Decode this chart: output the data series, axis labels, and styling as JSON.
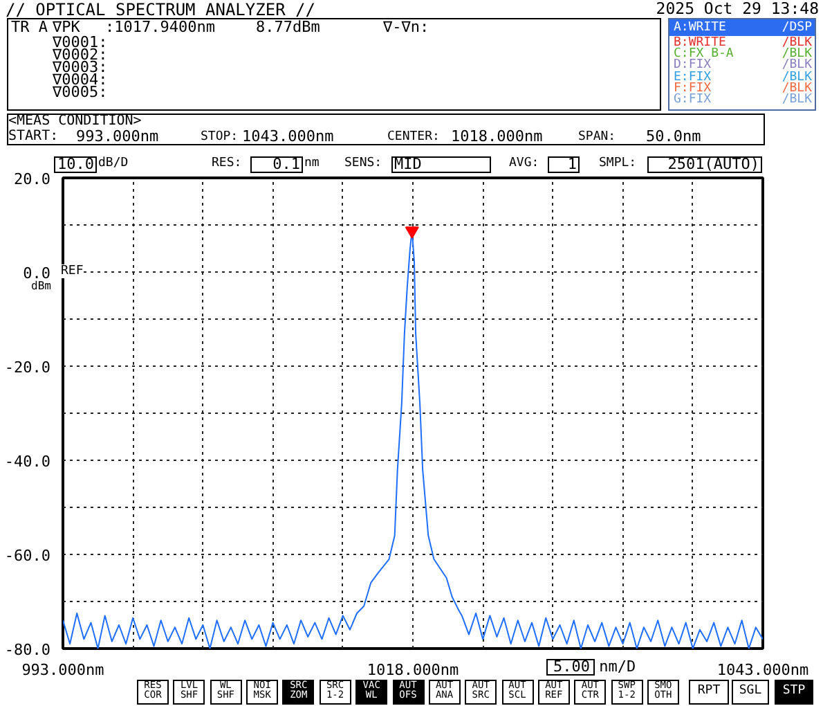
{
  "chart_data": {
    "type": "line",
    "title": "// OPTICAL SPECTRUM ANALYZER //",
    "subtitle": "2025 Oct 29 13:48",
    "ylabel": "dBm",
    "xlabel": "5.00 nm/D",
    "xlim": [
      993,
      1043
    ],
    "ylim": [
      -80,
      20
    ],
    "xticks": [
      {
        "value": 993,
        "label": "993.000nm"
      },
      {
        "value": 998,
        "label": null
      },
      {
        "value": 1003,
        "label": null
      },
      {
        "value": 1008,
        "label": null
      },
      {
        "value": 1013,
        "label": null
      },
      {
        "value": 1018,
        "label": "1018.000nm"
      },
      {
        "value": 1023,
        "label": null
      },
      {
        "value": 1028,
        "label": null
      },
      {
        "value": 1033,
        "label": null
      },
      {
        "value": 1038,
        "label": null
      },
      {
        "value": 1043,
        "label": "1043.000nm"
      }
    ],
    "yticks": [
      {
        "value": -80,
        "label": "-80.0"
      },
      {
        "value": -70,
        "label": null
      },
      {
        "value": -60,
        "label": "-60.0"
      },
      {
        "value": -50,
        "label": null
      },
      {
        "value": -40,
        "label": "-40.0"
      },
      {
        "value": -30,
        "label": null
      },
      {
        "value": -20,
        "label": "-20.0"
      },
      {
        "value": -10,
        "label": null
      },
      {
        "value": 0,
        "label": "0.0"
      },
      {
        "value": 10,
        "label": null
      },
      {
        "value": 20,
        "label": "20.0"
      }
    ],
    "grid": true,
    "series": [
      {
        "color": "#1f6fff",
        "x": [
          993,
          993.5,
          994,
          994.5,
          995,
          995.5,
          996,
          996.5,
          997,
          997.5,
          998,
          998.5,
          999,
          999.5,
          1000,
          1000.5,
          1001,
          1001.5,
          1002,
          1002.5,
          1003,
          1003.5,
          1004,
          1004.5,
          1005,
          1005.5,
          1006,
          1006.5,
          1007,
          1007.5,
          1008,
          1008.5,
          1009,
          1009.5,
          1010,
          1010.5,
          1011,
          1011.5,
          1012,
          1012.5,
          1013,
          1013.5,
          1014,
          1014.5,
          1015,
          1015.5,
          1016.3,
          1016.7,
          1016.9,
          1017.2,
          1017.4,
          1017.6,
          1017.8,
          1017.94,
          1018.1,
          1018.2,
          1018.5,
          1018.7,
          1019.1,
          1019.5,
          1020.4,
          1020.8,
          1021.3,
          1021.5,
          1022,
          1022.5,
          1023,
          1023.5,
          1024,
          1024.5,
          1025,
          1025.5,
          1026,
          1026.5,
          1027,
          1027.5,
          1028,
          1028.5,
          1029,
          1029.5,
          1030,
          1030.5,
          1031,
          1031.5,
          1032,
          1032.5,
          1033,
          1033.5,
          1034,
          1034.5,
          1035,
          1035.5,
          1036,
          1036.5,
          1037,
          1037.5,
          1038,
          1038.5,
          1039,
          1039.5,
          1040,
          1040.5,
          1041,
          1041.5,
          1042,
          1042.5,
          1043
        ],
        "values": [
          -74,
          -79,
          -72.5,
          -78,
          -74.5,
          -80,
          -73,
          -78.5,
          -75,
          -79,
          -73.5,
          -78,
          -75,
          -79.5,
          -74,
          -78.5,
          -75.5,
          -79,
          -73.5,
          -78,
          -75,
          -80,
          -74,
          -78.5,
          -75.5,
          -79,
          -74,
          -78,
          -75,
          -79.5,
          -74.5,
          -78,
          -75,
          -79,
          -74,
          -77.5,
          -74.5,
          -78,
          -73.5,
          -77,
          -73,
          -76,
          -72.5,
          -71,
          -66,
          -64,
          -61,
          -56,
          -42,
          -28,
          -13,
          -3,
          5,
          8.77,
          2,
          -13,
          -28,
          -42,
          -56,
          -61,
          -65,
          -69,
          -72,
          -73,
          -77,
          -72.5,
          -78,
          -73,
          -77.5,
          -73.5,
          -79,
          -74,
          -78.5,
          -74.5,
          -79.5,
          -73.5,
          -78,
          -75,
          -79,
          -74,
          -80,
          -75,
          -78.5,
          -74.5,
          -79.5,
          -75.5,
          -79,
          -74.5,
          -80,
          -75.5,
          -78.5,
          -74,
          -79.5,
          -75.5,
          -79,
          -74.5,
          -80,
          -76,
          -78.5,
          -74.5,
          -79.5,
          -75.5,
          -79,
          -74,
          -80,
          -75.5,
          -78
        ]
      },
      {
        "type": "scatter",
        "color": "#ff0000",
        "marker": "triangle",
        "x": [
          1017.94
        ],
        "values": [
          8.77
        ]
      }
    ],
    "annotations": [
      "TR A",
      "∇PK",
      ":1017.9400nm",
      "8.77dBm",
      "∇-∇n:",
      "∇0001:",
      "∇0002:",
      "∇0003:",
      "∇0004:",
      "∇0005:",
      "A:WRITE",
      "/DSP",
      "B:WRITE",
      "/BLK",
      "C:FX B-A",
      "/BLK",
      "D:FIX",
      "/BLK",
      "E:FIX",
      "/BLK",
      "F:FIX",
      "/BLK",
      "G:FIX",
      "/BLK",
      "<MEAS CONDITION>",
      "START:",
      "993.000nm",
      "STOP:",
      "1043.000nm",
      "CENTER:",
      "1018.000nm",
      "SPAN:",
      "50.0nm",
      "10.0",
      "dB/D",
      "RES:",
      "0.1",
      "nm",
      "SENS:",
      "MID",
      "AVG:",
      "1",
      "SMPL:",
      "2501(AUTO)",
      "REF",
      "RES\nCOR",
      "LVL\nSHF",
      "WL\nSHF",
      "NOI\nMSK",
      "SRC\nZOM",
      "SRC\n1-2",
      "VAC\nWL",
      "AUT\nOFS",
      "AUT\nANA",
      "AUT\nSRC",
      "AUT\nSCL",
      "AUT\nREF",
      "AUT\nCTR",
      "SWP\n1-2",
      "SMO\nOTH",
      "RPT",
      "SGL",
      "STP"
    ]
  }
}
